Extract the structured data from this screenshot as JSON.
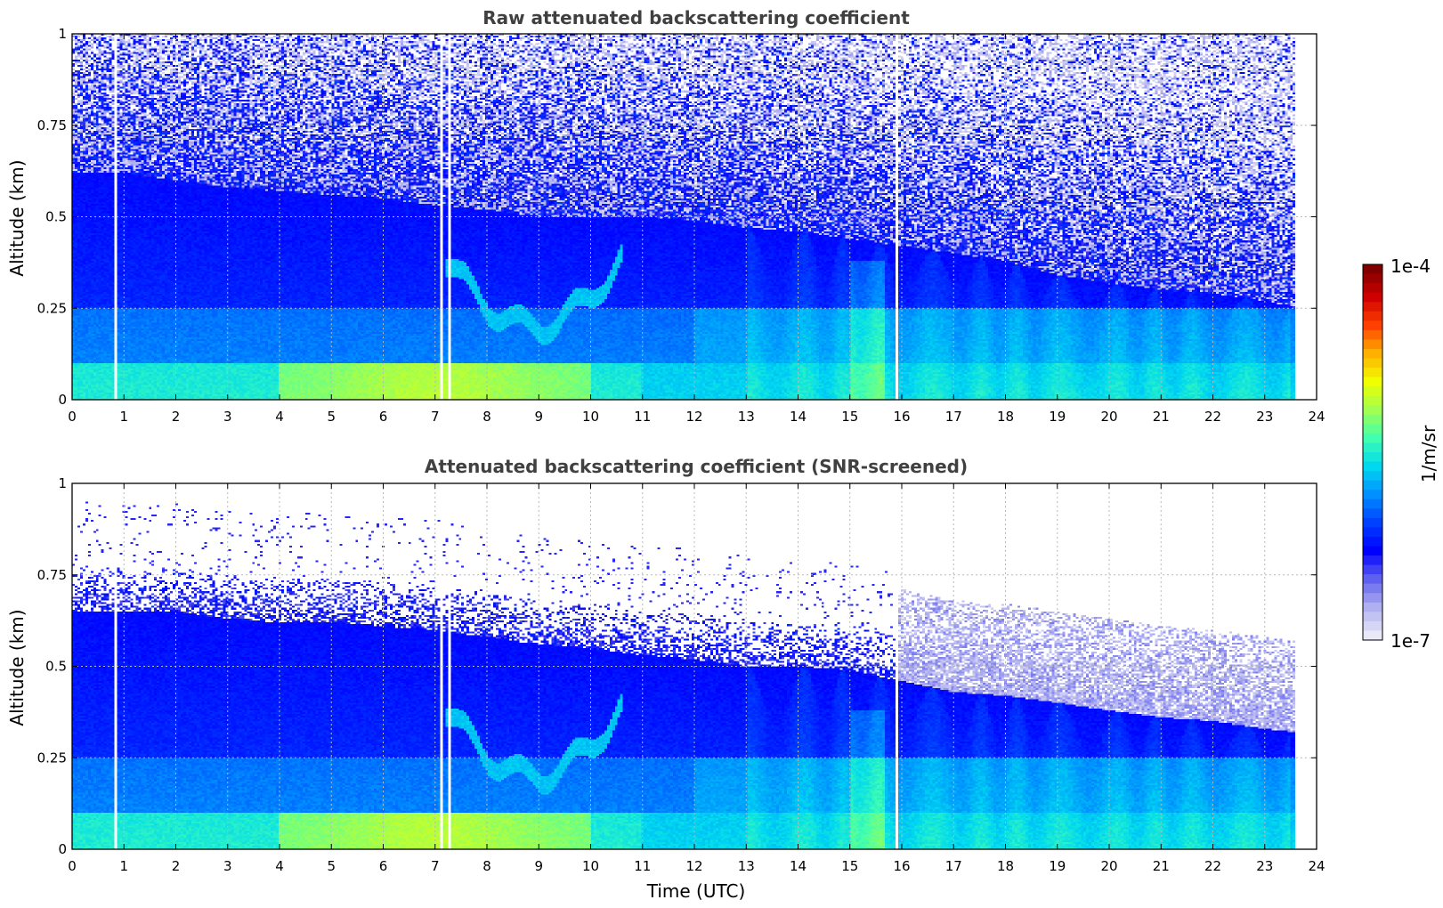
{
  "chart_data": [
    {
      "type": "heatmap",
      "title": "Raw attenuated backscattering coefficient",
      "xlabel": "",
      "ylabel": "Altitude (km)",
      "xlim": [
        0,
        24
      ],
      "ylim": [
        0,
        1
      ],
      "xticks": [
        "0",
        "1",
        "2",
        "3",
        "4",
        "5",
        "6",
        "7",
        "8",
        "9",
        "10",
        "11",
        "12",
        "13",
        "14",
        "15",
        "16",
        "17",
        "18",
        "19",
        "20",
        "21",
        "22",
        "23",
        "24"
      ],
      "yticks": [
        "0",
        "0.25",
        "0.5",
        "0.75",
        "1"
      ],
      "grid": true,
      "data_end_time": 23.6,
      "gaps": [
        0.83,
        7.08,
        7.25,
        15.88
      ],
      "aerosol_layer_top": [
        [
          0,
          0.62
        ],
        [
          1,
          0.62
        ],
        [
          2,
          0.6
        ],
        [
          3,
          0.58
        ],
        [
          4,
          0.57
        ],
        [
          5,
          0.56
        ],
        [
          6,
          0.55
        ],
        [
          7,
          0.53
        ],
        [
          8,
          0.52
        ],
        [
          9,
          0.5
        ],
        [
          10,
          0.5
        ],
        [
          11,
          0.5
        ],
        [
          12,
          0.49
        ],
        [
          13,
          0.47
        ],
        [
          14,
          0.46
        ],
        [
          15,
          0.44
        ],
        [
          16,
          0.42
        ],
        [
          17,
          0.4
        ],
        [
          18,
          0.38
        ],
        [
          19,
          0.34
        ],
        [
          20,
          0.32
        ],
        [
          21,
          0.3
        ],
        [
          22,
          0.29
        ],
        [
          23,
          0.27
        ],
        [
          23.6,
          0.25
        ]
      ],
      "noise_level": "high"
    },
    {
      "type": "heatmap",
      "title": "Attenuated backscattering coefficient (SNR-screened)",
      "xlabel": "Time (UTC)",
      "ylabel": "Altitude (km)",
      "xlim": [
        0,
        24
      ],
      "ylim": [
        0,
        1
      ],
      "xticks": [
        "0",
        "1",
        "2",
        "3",
        "4",
        "5",
        "6",
        "7",
        "8",
        "9",
        "10",
        "11",
        "12",
        "13",
        "14",
        "15",
        "16",
        "17",
        "18",
        "19",
        "20",
        "21",
        "22",
        "23",
        "24"
      ],
      "yticks": [
        "0",
        "0.25",
        "0.5",
        "0.75",
        "1"
      ],
      "grid": true,
      "data_end_time": 23.6,
      "gaps": [
        0.83,
        7.08,
        7.25,
        15.88
      ],
      "aerosol_layer_top": [
        [
          0,
          0.65
        ],
        [
          1,
          0.65
        ],
        [
          2,
          0.65
        ],
        [
          3,
          0.63
        ],
        [
          4,
          0.62
        ],
        [
          5,
          0.62
        ],
        [
          6,
          0.61
        ],
        [
          7,
          0.6
        ],
        [
          8,
          0.58
        ],
        [
          9,
          0.56
        ],
        [
          10,
          0.55
        ],
        [
          11,
          0.53
        ],
        [
          12,
          0.52
        ],
        [
          13,
          0.5
        ],
        [
          14,
          0.5
        ],
        [
          15,
          0.49
        ],
        [
          16,
          0.46
        ],
        [
          17,
          0.43
        ],
        [
          18,
          0.42
        ],
        [
          19,
          0.4
        ],
        [
          20,
          0.38
        ],
        [
          21,
          0.36
        ],
        [
          22,
          0.35
        ],
        [
          23,
          0.33
        ],
        [
          23.6,
          0.32
        ]
      ],
      "noise_level": "screened"
    }
  ],
  "colorbar": {
    "min_label": "1e-7",
    "max_label": "1e-4",
    "unit_label": "1/m/sr",
    "colors": [
      "#e8e8f8",
      "#b0b0f0",
      "#6060f0",
      "#0000ff",
      "#0040ff",
      "#0090ff",
      "#00d8f0",
      "#40ffb0",
      "#a0ff50",
      "#f0ff00",
      "#ffb000",
      "#ff4000",
      "#d00000",
      "#800000"
    ]
  }
}
